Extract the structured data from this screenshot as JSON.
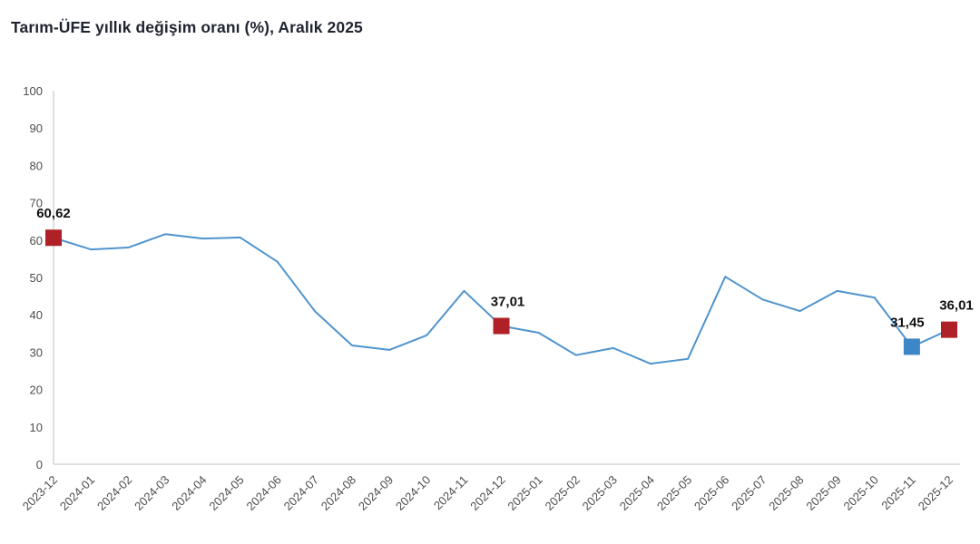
{
  "title": "Tarım-ÜFE yıllık değişim oranı (%), Aralık 2025",
  "chart_data": {
    "type": "line",
    "title": "Tarım-ÜFE yıllık değişim oranı (%), Aralık 2025",
    "xlabel": "",
    "ylabel": "",
    "ylim": [
      0,
      100
    ],
    "ytick_step": 10,
    "grid": false,
    "legend": "none",
    "x": [
      "2023-12",
      "2024-01",
      "2024-02",
      "2024-03",
      "2024-04",
      "2024-05",
      "2024-06",
      "2024-07",
      "2024-08",
      "2024-09",
      "2024-10",
      "2024-11",
      "2024-12",
      "2025-01",
      "2025-02",
      "2025-03",
      "2025-04",
      "2025-05",
      "2025-06",
      "2025-07",
      "2025-08",
      "2025-09",
      "2025-10",
      "2025-11",
      "2025-12"
    ],
    "values": [
      60.62,
      57.5,
      58.0,
      61.6,
      60.4,
      60.7,
      54.2,
      41.0,
      31.8,
      30.6,
      34.5,
      46.4,
      37.01,
      35.2,
      29.2,
      31.1,
      26.9,
      28.2,
      50.2,
      44.1,
      41.0,
      46.4,
      44.6,
      31.45,
      36.01
    ],
    "annotations": [
      {
        "index": 0,
        "label": "60,62",
        "marker_color": "#af2127"
      },
      {
        "index": 12,
        "label": "37,01",
        "marker_color": "#af2127"
      },
      {
        "index": 23,
        "label": "31,45",
        "marker_color": "#3d87c6"
      },
      {
        "index": 24,
        "label": "36,01",
        "marker_color": "#af2127"
      }
    ],
    "colors": {
      "line": "#4f94cd",
      "axis": "#d6d6d6",
      "tick_text": "#4d4d4d",
      "label_text": "#111111",
      "marker_red": "#af2127",
      "marker_blue": "#3d87c6"
    }
  }
}
